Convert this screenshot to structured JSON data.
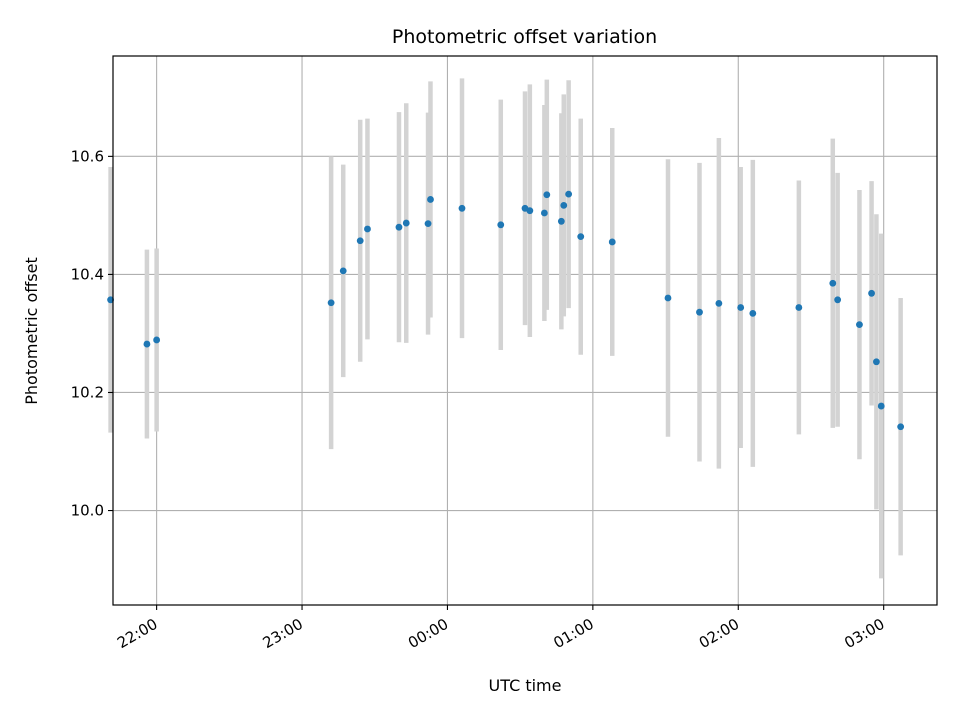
{
  "chart_data": {
    "type": "scatter",
    "title": "Photometric offset variation",
    "xlabel": "UTC time",
    "ylabel": "Photometric offset",
    "x_unit": "UTC time (HH:MM)",
    "xlim": [
      "21:42",
      "03:22"
    ],
    "ylim": [
      9.84,
      10.77
    ],
    "x_ticks": [
      "22:00",
      "23:00",
      "00:00",
      "01:00",
      "02:00",
      "03:00"
    ],
    "y_ticks": [
      10.0,
      10.2,
      10.4,
      10.6
    ],
    "y_tick_labels": [
      "10.0",
      "10.2",
      "10.4",
      "10.6"
    ],
    "grid": true,
    "marker_color": "#1f77b4",
    "errorbar_color": "#d3d3d3",
    "points": [
      {
        "x": "21:41",
        "y": 10.357,
        "err": 0.225
      },
      {
        "x": "21:56",
        "y": 10.282,
        "err": 0.16
      },
      {
        "x": "22:00",
        "y": 10.289,
        "err": 0.155
      },
      {
        "x": "23:12",
        "y": 10.352,
        "err": 0.248
      },
      {
        "x": "23:17",
        "y": 10.406,
        "err": 0.18
      },
      {
        "x": "23:24",
        "y": 10.457,
        "err": 0.205
      },
      {
        "x": "23:27",
        "y": 10.477,
        "err": 0.187
      },
      {
        "x": "23:40",
        "y": 10.48,
        "err": 0.195
      },
      {
        "x": "23:43",
        "y": 10.487,
        "err": 0.203
      },
      {
        "x": "23:52",
        "y": 10.486,
        "err": 0.188
      },
      {
        "x": "23:53",
        "y": 10.527,
        "err": 0.2
      },
      {
        "x": "00:06",
        "y": 10.512,
        "err": 0.22
      },
      {
        "x": "00:22",
        "y": 10.484,
        "err": 0.212
      },
      {
        "x": "00:32",
        "y": 10.512,
        "err": 0.198
      },
      {
        "x": "00:34",
        "y": 10.508,
        "err": 0.214
      },
      {
        "x": "00:40",
        "y": 10.504,
        "err": 0.183
      },
      {
        "x": "00:41",
        "y": 10.535,
        "err": 0.195
      },
      {
        "x": "00:47",
        "y": 10.49,
        "err": 0.183
      },
      {
        "x": "00:48",
        "y": 10.517,
        "err": 0.188
      },
      {
        "x": "00:50",
        "y": 10.536,
        "err": 0.193
      },
      {
        "x": "00:55",
        "y": 10.464,
        "err": 0.2
      },
      {
        "x": "01:08",
        "y": 10.455,
        "err": 0.193
      },
      {
        "x": "01:31",
        "y": 10.36,
        "err": 0.235
      },
      {
        "x": "01:44",
        "y": 10.336,
        "err": 0.253
      },
      {
        "x": "01:52",
        "y": 10.351,
        "err": 0.28
      },
      {
        "x": "02:01",
        "y": 10.344,
        "err": 0.238
      },
      {
        "x": "02:06",
        "y": 10.334,
        "err": 0.26
      },
      {
        "x": "02:25",
        "y": 10.344,
        "err": 0.215
      },
      {
        "x": "02:39",
        "y": 10.385,
        "err": 0.245
      },
      {
        "x": "02:41",
        "y": 10.357,
        "err": 0.215
      },
      {
        "x": "02:50",
        "y": 10.315,
        "err": 0.228
      },
      {
        "x": "02:55",
        "y": 10.368,
        "err": 0.19
      },
      {
        "x": "02:57",
        "y": 10.252,
        "err": 0.25
      },
      {
        "x": "02:59",
        "y": 10.177,
        "err": 0.292
      },
      {
        "x": "03:07",
        "y": 10.142,
        "err": 0.218
      }
    ]
  }
}
